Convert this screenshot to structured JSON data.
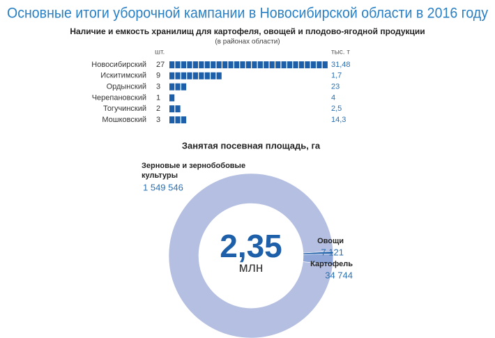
{
  "title": "Основные итоги уборочной кампании в Новосибирской области в 2016 году",
  "chart_data": [
    {
      "type": "pictogram",
      "title": "Наличие и емкость хранилищ для картофеля, овощей и плодово-ягодной продукции",
      "subtitle": "(в районах области)",
      "categories": [
        "Новосибирский",
        "Искитимский",
        "Ордынский",
        "Черепановский",
        "Тогучинский",
        "Мошковский"
      ],
      "series": [
        {
          "name": "шт.",
          "color": "#1d5fa8",
          "values": [
            27,
            9,
            3,
            1,
            2,
            3
          ]
        },
        {
          "name": "тыс. т",
          "values": [
            31.48,
            1.7,
            23,
            4,
            2.5,
            14.3
          ],
          "value_labels": [
            "31,48",
            "1,7",
            "23",
            "4",
            "2,5",
            "14,3"
          ]
        }
      ]
    },
    {
      "type": "donut",
      "title": "Занятая посевная площадь, га",
      "center_label": {
        "value": 2.35,
        "label": "2,35"
      },
      "center_unit": "млн",
      "categories": [
        "Зерновые и зернобобовые культуры",
        "Овощи",
        "Картофель"
      ],
      "values": [
        1549546,
        7121,
        34744
      ],
      "value_labels": [
        "1 549 546",
        "7 121",
        "34 744"
      ],
      "colors": [
        "#b4bfe1",
        "#1d5fa8",
        "#8ea6d8"
      ]
    }
  ]
}
